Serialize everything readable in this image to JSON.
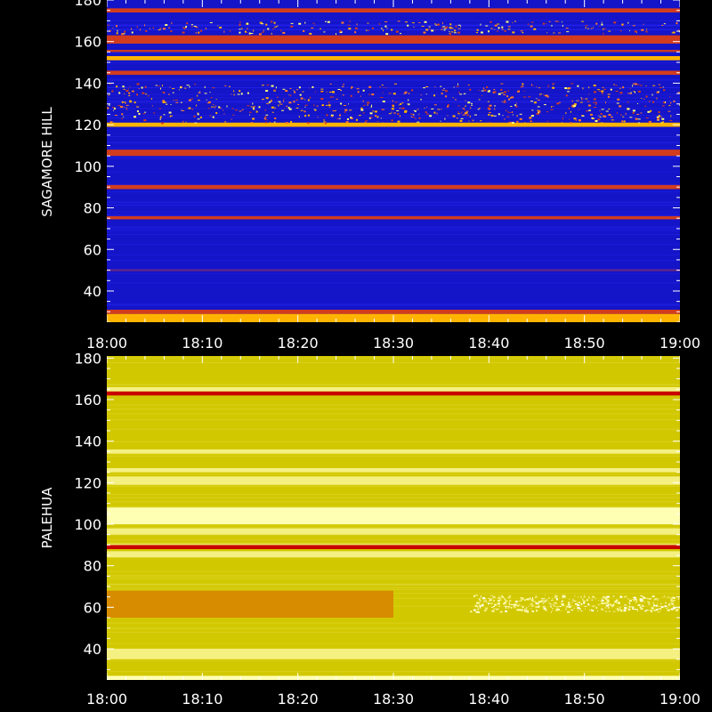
{
  "chart_data": [
    {
      "type": "heatmap",
      "ylabel": "SAGAMORE  HILL",
      "x_ticks": [
        "18:00",
        "18:10",
        "18:20",
        "18:30",
        "18:40",
        "18:50",
        "19:00"
      ],
      "x_range_minutes": [
        0,
        60
      ],
      "y_ticks": [
        40,
        60,
        80,
        100,
        120,
        140,
        160,
        180
      ],
      "ylim": [
        25,
        180
      ],
      "colors": {
        "background": "#1414c8",
        "low": "#1e1ee6",
        "mid": "#d23c1e",
        "high": "#ffb400",
        "peak": "#ffff78"
      },
      "bands": [
        {
          "y0": 25,
          "y1": 29,
          "level": "high"
        },
        {
          "y0": 29,
          "y1": 31,
          "level": "mid"
        },
        {
          "y0": 49.5,
          "y1": 50.5,
          "level": "faint"
        },
        {
          "y0": 74.5,
          "y1": 76,
          "level": "mid"
        },
        {
          "y0": 89,
          "y1": 91,
          "level": "mid"
        },
        {
          "y0": 105,
          "y1": 108,
          "level": "mid"
        },
        {
          "y0": 119,
          "y1": 121,
          "level": "high"
        },
        {
          "y0": 121,
          "y1": 140,
          "level": "speckle"
        },
        {
          "y0": 144,
          "y1": 146,
          "level": "mid"
        },
        {
          "y0": 151,
          "y1": 153,
          "level": "high"
        },
        {
          "y0": 155,
          "y1": 156,
          "level": "mid"
        },
        {
          "y0": 159,
          "y1": 163,
          "level": "mid"
        },
        {
          "y0": 164,
          "y1": 170,
          "level": "speckle"
        },
        {
          "y0": 174,
          "y1": 176,
          "level": "mid"
        }
      ]
    },
    {
      "type": "heatmap",
      "ylabel": "PALEHUA",
      "x_ticks": [
        "18:00",
        "18:10",
        "18:20",
        "18:30",
        "18:40",
        "18:50",
        "19:00"
      ],
      "x_range_minutes": [
        0,
        60
      ],
      "y_ticks": [
        40,
        60,
        80,
        100,
        120,
        140,
        160,
        180
      ],
      "ylim": [
        25,
        181
      ],
      "colors": {
        "background": "#d2c800",
        "light": "#f5f082",
        "bright": "#ffffb4",
        "orange": "#d78c00",
        "red": "#c80000"
      },
      "bands": [
        {
          "y0": 25,
          "y1": 27,
          "level": "bright"
        },
        {
          "y0": 35,
          "y1": 40,
          "level": "light"
        },
        {
          "y0": 55,
          "y1": 68,
          "level": "orange-left"
        },
        {
          "y0": 58,
          "y1": 66,
          "level": "speckle-right"
        },
        {
          "y0": 84,
          "y1": 87,
          "level": "light"
        },
        {
          "y0": 88,
          "y1": 90,
          "level": "red"
        },
        {
          "y0": 95,
          "y1": 98,
          "level": "light"
        },
        {
          "y0": 100,
          "y1": 108,
          "level": "bright"
        },
        {
          "y0": 119,
          "y1": 123,
          "level": "light"
        },
        {
          "y0": 125,
          "y1": 127,
          "level": "light"
        },
        {
          "y0": 134,
          "y1": 136,
          "level": "light"
        },
        {
          "y0": 162,
          "y1": 164,
          "level": "red"
        },
        {
          "y0": 164,
          "y1": 166,
          "level": "light"
        }
      ]
    }
  ]
}
